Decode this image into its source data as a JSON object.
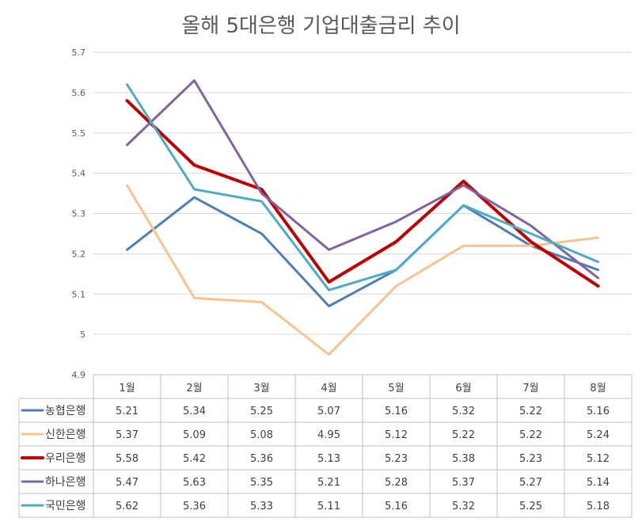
{
  "chart_data": {
    "type": "line",
    "title": "올해 5대은행 기업대출금리 추이",
    "categories": [
      "1월",
      "2월",
      "3월",
      "4월",
      "5월",
      "6월",
      "7월",
      "8월"
    ],
    "ylim": [
      4.9,
      5.7
    ],
    "yticks": [
      "4.9",
      "5",
      "5.1",
      "5.2",
      "5.3",
      "5.4",
      "5.5",
      "5.6",
      "5.7"
    ],
    "grid": true,
    "legend_placement": "data table",
    "series": [
      {
        "name": "농협은행",
        "color": "#4f7db4",
        "width": 3,
        "values": [
          5.21,
          5.34,
          5.25,
          5.07,
          5.16,
          5.32,
          5.22,
          5.16
        ],
        "labels": [
          "5.21",
          "5.34",
          "5.25",
          "5.07",
          "5.16",
          "5.32",
          "5.22",
          "5.16"
        ]
      },
      {
        "name": "신한은행",
        "color": "#f6c48f",
        "width": 3,
        "values": [
          5.37,
          5.09,
          5.08,
          4.95,
          5.12,
          5.22,
          5.22,
          5.24
        ],
        "labels": [
          "5.37",
          "5.09",
          "5.08",
          "4.95",
          "5.12",
          "5.22",
          "5.22",
          "5.24"
        ]
      },
      {
        "name": "우리은행",
        "color": "#c00000",
        "width": 4,
        "values": [
          5.58,
          5.42,
          5.36,
          5.13,
          5.23,
          5.38,
          5.23,
          5.12
        ],
        "labels": [
          "5.58",
          "5.42",
          "5.36",
          "5.13",
          "5.23",
          "5.38",
          "5.23",
          "5.12"
        ]
      },
      {
        "name": "하나은행",
        "color": "#8064a2",
        "width": 3,
        "values": [
          5.47,
          5.63,
          5.35,
          5.21,
          5.28,
          5.37,
          5.27,
          5.14
        ],
        "labels": [
          "5.47",
          "5.63",
          "5.35",
          "5.21",
          "5.28",
          "5.37",
          "5.27",
          "5.14"
        ]
      },
      {
        "name": "국민은행",
        "color": "#4bacc6",
        "width": 3,
        "values": [
          5.62,
          5.36,
          5.33,
          5.11,
          5.16,
          5.32,
          5.25,
          5.18
        ],
        "labels": [
          "5.62",
          "5.36",
          "5.33",
          "5.11",
          "5.16",
          "5.32",
          "5.25",
          "5.18"
        ]
      }
    ]
  }
}
